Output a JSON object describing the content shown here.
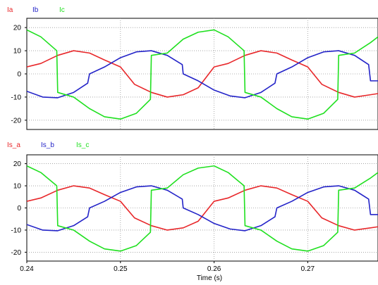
{
  "chart_data": [
    {
      "type": "line",
      "xlim": [
        0.24,
        0.2775
      ],
      "ylim": [
        -24,
        24
      ],
      "yticks": [
        20,
        10,
        0,
        -10,
        -20
      ],
      "xticks": [
        0.24,
        0.25,
        0.26,
        0.27
      ],
      "grid": true,
      "legend_position": "top-left",
      "series": [
        {
          "name": "Ia",
          "color": "#e8272a",
          "x": [
            0.24,
            0.2415,
            0.2433,
            0.245,
            0.2467,
            0.2483,
            0.25,
            0.2515,
            0.2533,
            0.255,
            0.2567,
            0.2583,
            0.26,
            0.2615,
            0.2633,
            0.265,
            0.2667,
            0.2683,
            0.27,
            0.2715,
            0.2733,
            0.275,
            0.2767,
            0.2775
          ],
          "y": [
            3,
            4.5,
            8,
            10,
            9,
            6,
            3,
            -4.5,
            -8,
            -10,
            -9,
            -6,
            3,
            4.5,
            8,
            10,
            9,
            6,
            3,
            -4.5,
            -8,
            -10,
            -9,
            -8.5
          ]
        },
        {
          "name": "Ib",
          "color": "#2323c8",
          "x": [
            0.24,
            0.2417,
            0.2433,
            0.245,
            0.2465,
            0.2467,
            0.2483,
            0.25,
            0.2517,
            0.2533,
            0.255,
            0.2566,
            0.2567,
            0.2583,
            0.26,
            0.2617,
            0.2633,
            0.265,
            0.2665,
            0.2667,
            0.2683,
            0.27,
            0.2717,
            0.2733,
            0.275,
            0.2765,
            0.2767,
            0.2775
          ],
          "y": [
            -7.5,
            -10,
            -10.3,
            -8,
            -4,
            0,
            3,
            7,
            9.5,
            10,
            8,
            4,
            0,
            -3,
            -7,
            -9.5,
            -10.3,
            -8,
            -4,
            0,
            3,
            7,
            9.5,
            10,
            8,
            4,
            -3,
            -3
          ]
        },
        {
          "name": "Ic",
          "color": "#1fe01f",
          "x": [
            0.24,
            0.2415,
            0.2432,
            0.2433,
            0.245,
            0.2467,
            0.2483,
            0.25,
            0.2517,
            0.2532,
            0.2533,
            0.255,
            0.2567,
            0.2583,
            0.26,
            0.2615,
            0.2632,
            0.2633,
            0.265,
            0.2667,
            0.2683,
            0.27,
            0.2717,
            0.2732,
            0.2733,
            0.275,
            0.2767,
            0.2775
          ],
          "y": [
            19,
            16,
            10,
            -8,
            -10,
            -15,
            -18.5,
            -19.5,
            -17,
            -11,
            8,
            9,
            15,
            18,
            19,
            16,
            10,
            -8,
            -10,
            -15,
            -18.5,
            -19.5,
            -17,
            -11,
            8,
            9,
            13.5,
            16
          ]
        }
      ]
    },
    {
      "type": "line",
      "xlim": [
        0.24,
        0.2775
      ],
      "ylim": [
        -24,
        24
      ],
      "yticks": [
        20,
        10,
        0,
        -10,
        -20
      ],
      "xticks": [
        0.24,
        0.25,
        0.26,
        0.27
      ],
      "xtick_labels": [
        "0.24",
        "0.25",
        "0.26",
        "0.27"
      ],
      "xlabel": "Time (s)",
      "grid": true,
      "legend_position": "top-left",
      "series": [
        {
          "name": "Is_a",
          "color": "#e8272a",
          "x": [
            0.24,
            0.2415,
            0.2433,
            0.245,
            0.2467,
            0.2483,
            0.25,
            0.2515,
            0.2533,
            0.255,
            0.2567,
            0.2583,
            0.26,
            0.2615,
            0.2633,
            0.265,
            0.2667,
            0.2683,
            0.27,
            0.2715,
            0.2733,
            0.275,
            0.2767,
            0.2775
          ],
          "y": [
            3,
            4.5,
            8,
            10,
            9,
            6,
            3,
            -4.5,
            -8,
            -10,
            -9,
            -6,
            3,
            4.5,
            8,
            10,
            9,
            6,
            3,
            -4.5,
            -8,
            -10,
            -9,
            -8.5
          ]
        },
        {
          "name": "Is_b",
          "color": "#2323c8",
          "x": [
            0.24,
            0.2417,
            0.2433,
            0.245,
            0.2465,
            0.2467,
            0.2483,
            0.25,
            0.2517,
            0.2533,
            0.255,
            0.2566,
            0.2567,
            0.2583,
            0.26,
            0.2617,
            0.2633,
            0.265,
            0.2665,
            0.2667,
            0.2683,
            0.27,
            0.2717,
            0.2733,
            0.275,
            0.2765,
            0.2767,
            0.2775
          ],
          "y": [
            -7.5,
            -10,
            -10.3,
            -8,
            -4,
            0,
            3,
            7,
            9.5,
            10,
            8,
            4,
            0,
            -3,
            -7,
            -9.5,
            -10.3,
            -8,
            -4,
            0,
            3,
            7,
            9.5,
            10,
            8,
            4,
            -3,
            -3
          ]
        },
        {
          "name": "Is_c",
          "color": "#1fe01f",
          "x": [
            0.24,
            0.2415,
            0.2432,
            0.2433,
            0.245,
            0.2467,
            0.2483,
            0.25,
            0.2517,
            0.2532,
            0.2533,
            0.255,
            0.2567,
            0.2583,
            0.26,
            0.2615,
            0.2632,
            0.2633,
            0.265,
            0.2667,
            0.2683,
            0.27,
            0.2717,
            0.2732,
            0.2733,
            0.275,
            0.2767,
            0.2775
          ],
          "y": [
            19,
            16,
            10,
            -8,
            -10,
            -15,
            -18.5,
            -19.5,
            -17,
            -11,
            8,
            9,
            15,
            18,
            19,
            16,
            10,
            -8,
            -10,
            -15,
            -18.5,
            -19.5,
            -17,
            -11,
            8,
            9,
            13.5,
            16
          ]
        }
      ]
    }
  ]
}
